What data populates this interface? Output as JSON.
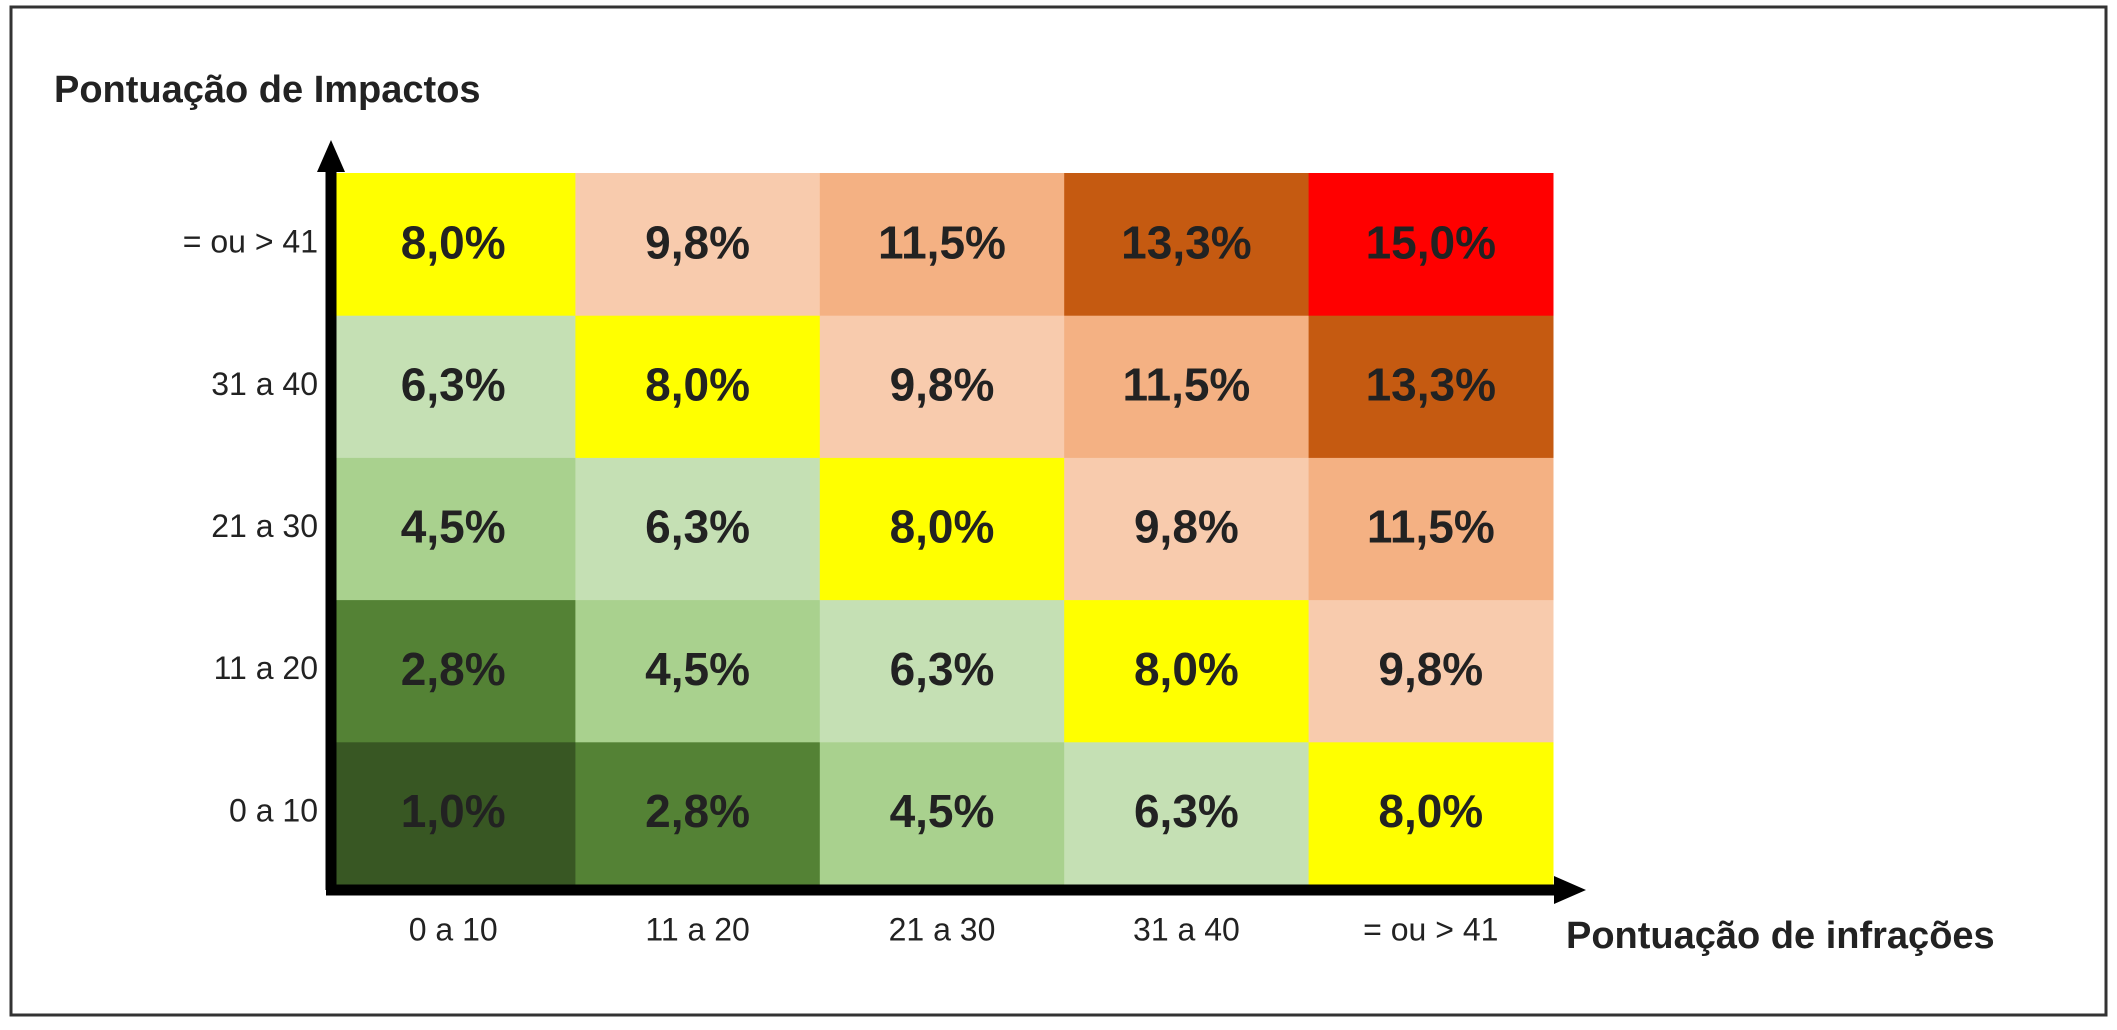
{
  "chart_data": {
    "type": "heatmap",
    "y_axis_title": "Pontuação de Impactos",
    "x_axis_title": "Pontuação de infrações",
    "x_categories": [
      "0 a 10",
      "11 a 20",
      "21 a 30",
      "31 a 40",
      "= ou > 41"
    ],
    "y_categories": [
      "0 a 10",
      "11 a 20",
      "21 a 30",
      "31 a 40",
      "= ou > 41"
    ],
    "values": [
      [
        1.0,
        2.8,
        4.5,
        6.3,
        8.0
      ],
      [
        2.8,
        4.5,
        6.3,
        8.0,
        9.8
      ],
      [
        4.5,
        6.3,
        8.0,
        9.8,
        11.5
      ],
      [
        6.3,
        8.0,
        9.8,
        11.5,
        13.3
      ],
      [
        8.0,
        9.8,
        11.5,
        13.3,
        15.0
      ]
    ],
    "value_labels": [
      [
        "1,0%",
        "2,8%",
        "4,5%",
        "6,3%",
        "8,0%"
      ],
      [
        "2,8%",
        "4,5%",
        "6,3%",
        "8,0%",
        "9,8%"
      ],
      [
        "4,5%",
        "6,3%",
        "8,0%",
        "9,8%",
        "11,5%"
      ],
      [
        "6,3%",
        "8,0%",
        "9,8%",
        "11,5%",
        "13,3%"
      ],
      [
        "8,0%",
        "9,8%",
        "11,5%",
        "13,3%",
        "15,0%"
      ]
    ],
    "colors": [
      [
        "#385723",
        "#548235",
        "#a9d18e",
        "#c5e0b4",
        "#ffff00"
      ],
      [
        "#548235",
        "#a9d18e",
        "#c5e0b4",
        "#ffff00",
        "#f8cbad"
      ],
      [
        "#a9d18e",
        "#c5e0b4",
        "#ffff00",
        "#f8cbad",
        "#f4b183"
      ],
      [
        "#c5e0b4",
        "#ffff00",
        "#f8cbad",
        "#f4b183",
        "#c55a11"
      ],
      [
        "#ffff00",
        "#f8cbad",
        "#f4b183",
        "#c55a11",
        "#ff0000"
      ]
    ]
  }
}
